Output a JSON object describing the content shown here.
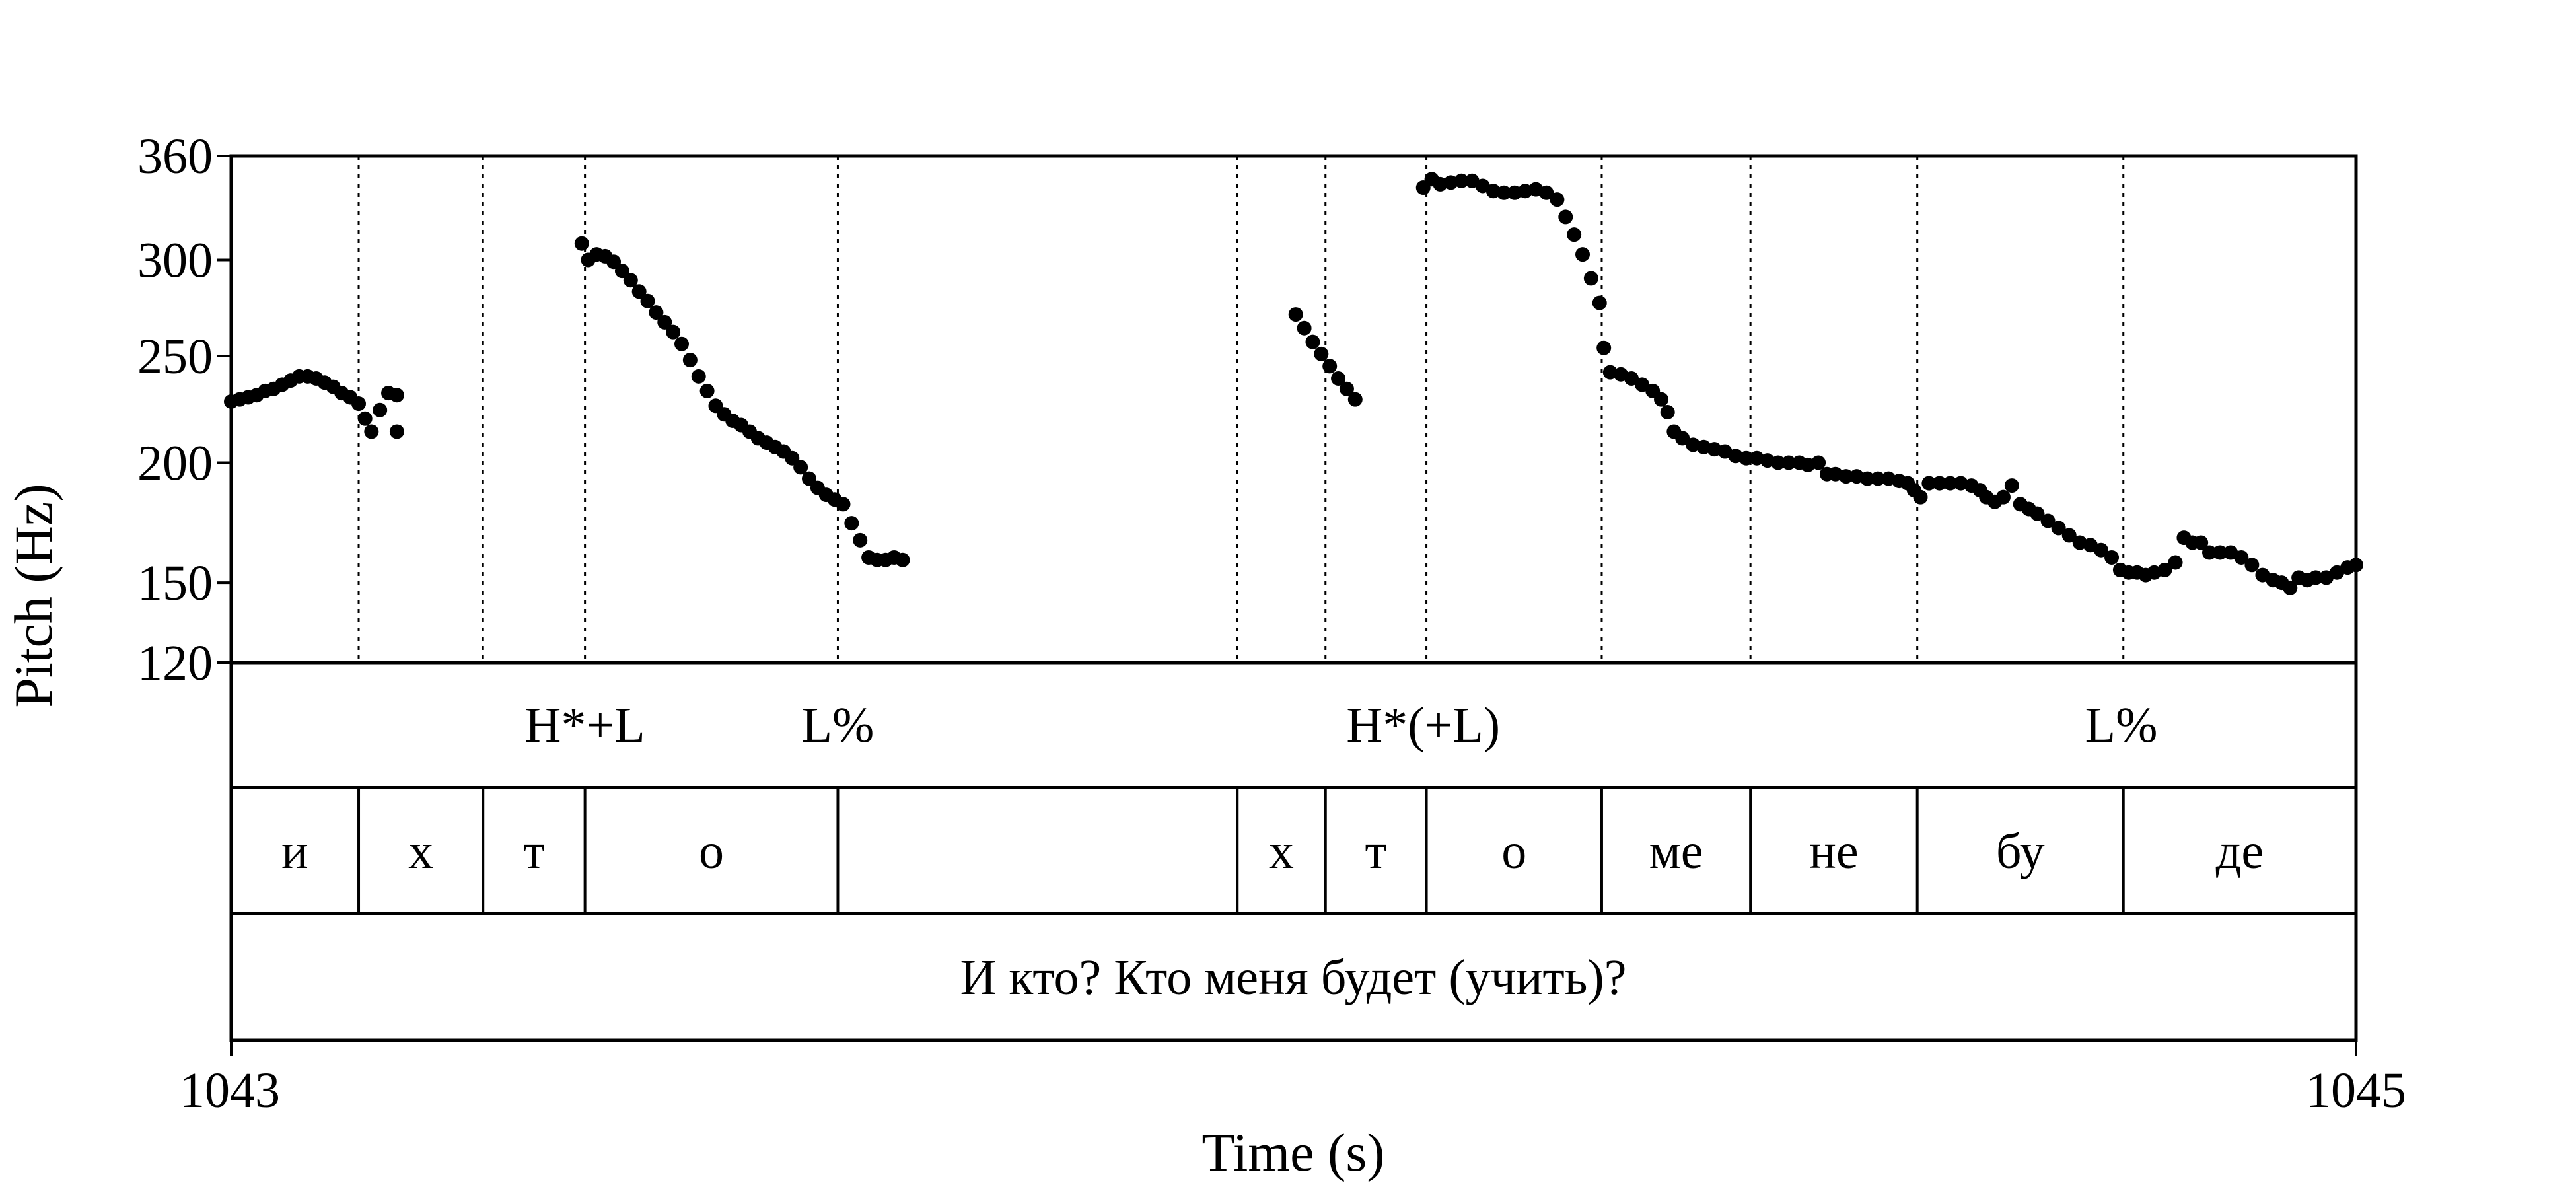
{
  "chart_data": {
    "type": "scatter",
    "xlabel": "Time (s)",
    "ylabel": "Pitch (Hz)",
    "xlim": [
      1043,
      1045
    ],
    "ylim": [
      120,
      360
    ],
    "x_tick_labels": [
      "1043",
      "1045"
    ],
    "y_ticks": [
      120,
      150,
      200,
      250,
      300,
      360
    ],
    "marker_color": "#000000",
    "tone_tier": [
      {
        "time": 1043.333,
        "label": "H*+L"
      },
      {
        "time": 1043.571,
        "label": "L%"
      },
      {
        "time": 1044.122,
        "label": "H*(+L)"
      },
      {
        "time": 1044.779,
        "label": "L%"
      }
    ],
    "syllable_tier": [
      {
        "start": 1043.0,
        "end": 1043.12,
        "label": "и"
      },
      {
        "start": 1043.12,
        "end": 1043.237,
        "label": "х"
      },
      {
        "start": 1043.237,
        "end": 1043.333,
        "label": "т"
      },
      {
        "start": 1043.333,
        "end": 1043.571,
        "label": "о"
      },
      {
        "start": 1043.571,
        "end": 1043.947,
        "label": ""
      },
      {
        "start": 1043.947,
        "end": 1044.03,
        "label": "х"
      },
      {
        "start": 1044.03,
        "end": 1044.125,
        "label": "т"
      },
      {
        "start": 1044.125,
        "end": 1044.29,
        "label": "о"
      },
      {
        "start": 1044.29,
        "end": 1044.43,
        "label": "ме"
      },
      {
        "start": 1044.43,
        "end": 1044.587,
        "label": "не"
      },
      {
        "start": 1044.587,
        "end": 1044.781,
        "label": "бу"
      },
      {
        "start": 1044.781,
        "end": 1045.0,
        "label": "де"
      }
    ],
    "sentence_tier": {
      "label": "И кто? Кто меня будет (учить)?"
    },
    "series": [
      {
        "points": [
          [
            1043.0,
            228
          ],
          [
            1043.008,
            229
          ],
          [
            1043.016,
            230
          ],
          [
            1043.024,
            231
          ],
          [
            1043.032,
            233
          ],
          [
            1043.04,
            234
          ],
          [
            1043.048,
            236
          ],
          [
            1043.056,
            238
          ],
          [
            1043.064,
            240
          ],
          [
            1043.072,
            240
          ],
          [
            1043.08,
            239
          ],
          [
            1043.088,
            237
          ],
          [
            1043.096,
            235
          ],
          [
            1043.104,
            232
          ],
          [
            1043.112,
            230
          ],
          [
            1043.12,
            227
          ],
          [
            1043.126,
            220
          ],
          [
            1043.132,
            214
          ],
          [
            1043.14,
            224
          ],
          [
            1043.148,
            232
          ],
          [
            1043.156,
            231
          ],
          [
            1043.156,
            214
          ],
          [
            1043.33,
            309
          ],
          [
            1043.336,
            300
          ],
          [
            1043.344,
            303
          ],
          [
            1043.352,
            302
          ],
          [
            1043.36,
            299
          ],
          [
            1043.368,
            294
          ],
          [
            1043.376,
            289
          ],
          [
            1043.384,
            283
          ],
          [
            1043.392,
            278
          ],
          [
            1043.4,
            272
          ],
          [
            1043.408,
            267
          ],
          [
            1043.416,
            262
          ],
          [
            1043.424,
            256
          ],
          [
            1043.432,
            248
          ],
          [
            1043.44,
            240
          ],
          [
            1043.448,
            233
          ],
          [
            1043.456,
            226
          ],
          [
            1043.464,
            222
          ],
          [
            1043.472,
            219
          ],
          [
            1043.48,
            217
          ],
          [
            1043.488,
            214
          ],
          [
            1043.496,
            211
          ],
          [
            1043.504,
            209
          ],
          [
            1043.512,
            207
          ],
          [
            1043.52,
            205
          ],
          [
            1043.528,
            202
          ],
          [
            1043.536,
            198
          ],
          [
            1043.544,
            193
          ],
          [
            1043.552,
            189
          ],
          [
            1043.56,
            186
          ],
          [
            1043.568,
            184
          ],
          [
            1043.576,
            182
          ],
          [
            1043.584,
            174
          ],
          [
            1043.592,
            167
          ],
          [
            1043.6,
            160
          ],
          [
            1043.608,
            159
          ],
          [
            1043.616,
            159
          ],
          [
            1043.624,
            160
          ],
          [
            1043.632,
            159
          ]
        ]
      },
      {
        "points": [
          [
            1044.002,
            271
          ],
          [
            1044.01,
            264
          ],
          [
            1044.018,
            257
          ],
          [
            1044.026,
            251
          ],
          [
            1044.034,
            245
          ],
          [
            1044.042,
            239
          ],
          [
            1044.05,
            234
          ],
          [
            1044.058,
            229
          ]
        ]
      },
      {
        "points": [
          [
            1044.122,
            341
          ],
          [
            1044.13,
            346
          ],
          [
            1044.138,
            343
          ],
          [
            1044.148,
            344
          ],
          [
            1044.158,
            345
          ],
          [
            1044.168,
            345
          ],
          [
            1044.178,
            342
          ],
          [
            1044.188,
            339
          ],
          [
            1044.198,
            338
          ],
          [
            1044.208,
            338
          ],
          [
            1044.218,
            339
          ],
          [
            1044.228,
            340
          ],
          [
            1044.238,
            338
          ],
          [
            1044.248,
            334
          ],
          [
            1044.256,
            324
          ],
          [
            1044.264,
            314
          ],
          [
            1044.272,
            303
          ],
          [
            1044.28,
            290
          ],
          [
            1044.288,
            277
          ],
          [
            1044.292,
            254
          ],
          [
            1044.298,
            242
          ],
          [
            1044.308,
            241
          ],
          [
            1044.318,
            239
          ],
          [
            1044.328,
            236
          ],
          [
            1044.338,
            233
          ],
          [
            1044.346,
            229
          ],
          [
            1044.352,
            223
          ],
          [
            1044.358,
            214
          ],
          [
            1044.366,
            211
          ],
          [
            1044.376,
            208
          ],
          [
            1044.386,
            207
          ],
          [
            1044.396,
            206
          ],
          [
            1044.406,
            205
          ],
          [
            1044.416,
            203
          ],
          [
            1044.426,
            202
          ],
          [
            1044.436,
            202
          ],
          [
            1044.446,
            201
          ],
          [
            1044.456,
            200
          ],
          [
            1044.466,
            200
          ],
          [
            1044.476,
            200
          ],
          [
            1044.484,
            199
          ],
          [
            1044.494,
            200
          ],
          [
            1044.502,
            195
          ],
          [
            1044.51,
            195
          ],
          [
            1044.52,
            194
          ],
          [
            1044.53,
            194
          ],
          [
            1044.54,
            193
          ],
          [
            1044.55,
            193
          ],
          [
            1044.56,
            193
          ],
          [
            1044.57,
            192
          ],
          [
            1044.578,
            191
          ],
          [
            1044.584,
            188
          ],
          [
            1044.59,
            185
          ],
          [
            1044.598,
            191
          ],
          [
            1044.608,
            191
          ],
          [
            1044.618,
            191
          ],
          [
            1044.628,
            191
          ],
          [
            1044.638,
            190
          ],
          [
            1044.646,
            188
          ],
          [
            1044.652,
            185
          ],
          [
            1044.66,
            183
          ],
          [
            1044.668,
            185
          ],
          [
            1044.676,
            190
          ],
          [
            1044.684,
            182
          ],
          [
            1044.692,
            180
          ],
          [
            1044.7,
            178
          ],
          [
            1044.71,
            175
          ],
          [
            1044.72,
            172
          ],
          [
            1044.73,
            169
          ],
          [
            1044.74,
            166
          ],
          [
            1044.75,
            165
          ],
          [
            1044.76,
            163
          ],
          [
            1044.77,
            160
          ],
          [
            1044.778,
            155
          ],
          [
            1044.786,
            154
          ],
          [
            1044.794,
            154
          ],
          [
            1044.802,
            153
          ],
          [
            1044.81,
            154
          ],
          [
            1044.82,
            155
          ],
          [
            1044.83,
            158
          ],
          [
            1044.838,
            168
          ],
          [
            1044.846,
            166
          ],
          [
            1044.854,
            166
          ],
          [
            1044.862,
            162
          ],
          [
            1044.872,
            162
          ],
          [
            1044.882,
            162
          ],
          [
            1044.892,
            160
          ],
          [
            1044.902,
            157
          ],
          [
            1044.912,
            153
          ],
          [
            1044.922,
            151
          ],
          [
            1044.93,
            150
          ],
          [
            1044.938,
            148
          ],
          [
            1044.946,
            152
          ],
          [
            1044.954,
            151
          ],
          [
            1044.962,
            152
          ],
          [
            1044.972,
            152
          ],
          [
            1044.982,
            154
          ],
          [
            1044.992,
            156
          ],
          [
            1045.0,
            157
          ]
        ]
      }
    ]
  }
}
